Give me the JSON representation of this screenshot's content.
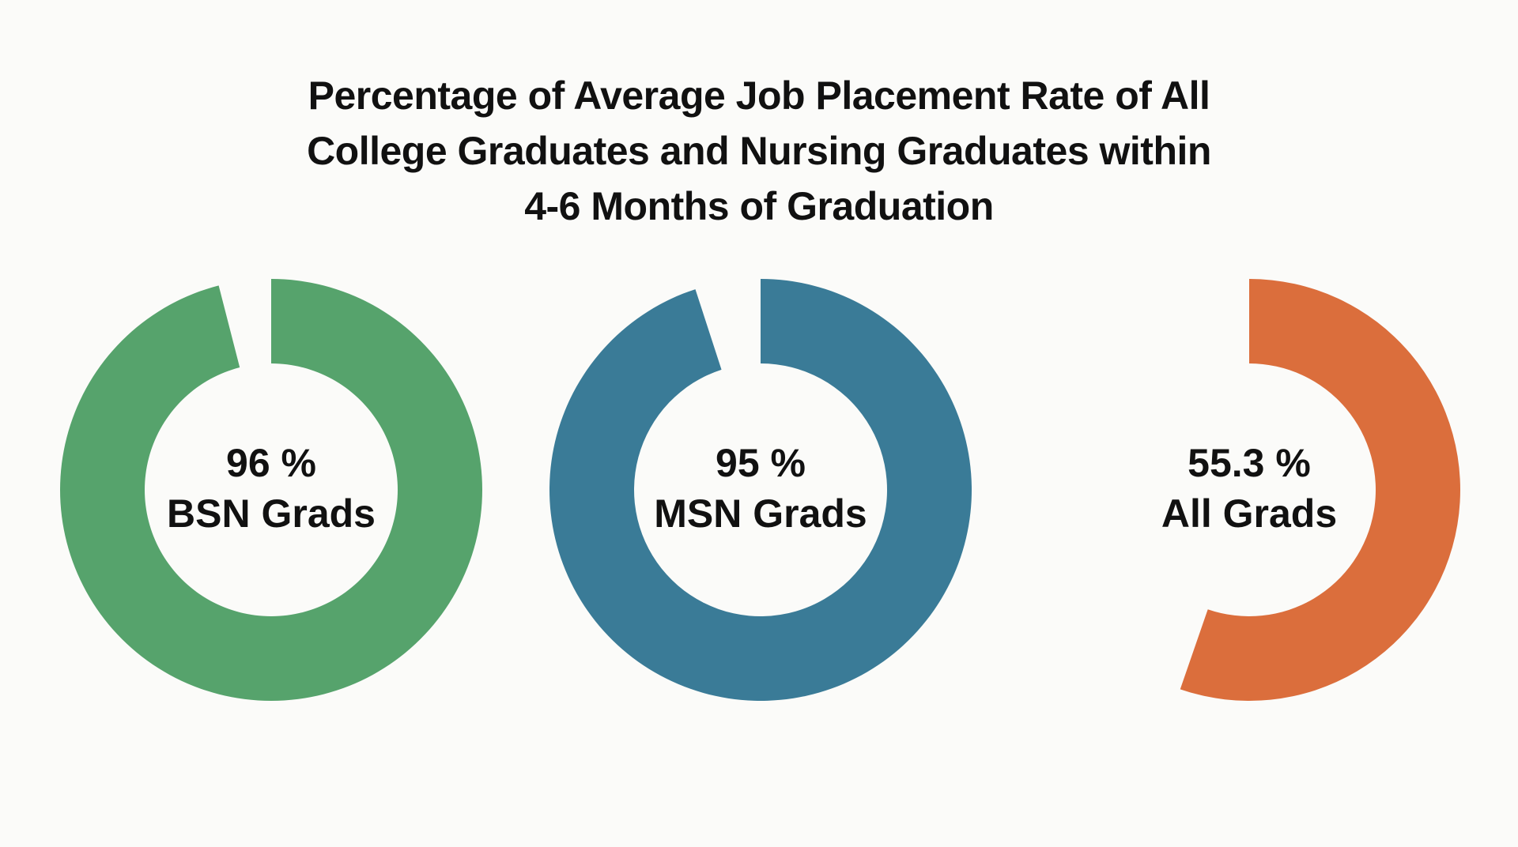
{
  "title_lines": [
    "Percentage of Average Job Placement Rate of All",
    "College Graduates and Nursing Graduates within",
    "4-6 Months of Graduation"
  ],
  "donuts": [
    {
      "value_label": "96 %",
      "name": "BSN Grads",
      "color": "#56a36c"
    },
    {
      "value_label": "95 %",
      "name": "MSN Grads",
      "color": "#3a7b97"
    },
    {
      "value_label": "55.3 %",
      "name": "All Grads",
      "color": "#db6e3c"
    }
  ],
  "chart_data": {
    "type": "pie",
    "subtype": "donut",
    "title": "Percentage of Average Job Placement Rate of All College Graduates and Nursing Graduates within 4-6 Months of Graduation",
    "categories": [
      "BSN Grads",
      "MSN Grads",
      "All Grads"
    ],
    "values": [
      96,
      95,
      55.3
    ],
    "unit": "%",
    "colors": [
      "#56a36c",
      "#3a7b97",
      "#db6e3c"
    ],
    "legend": "none (labels inside donuts)"
  }
}
